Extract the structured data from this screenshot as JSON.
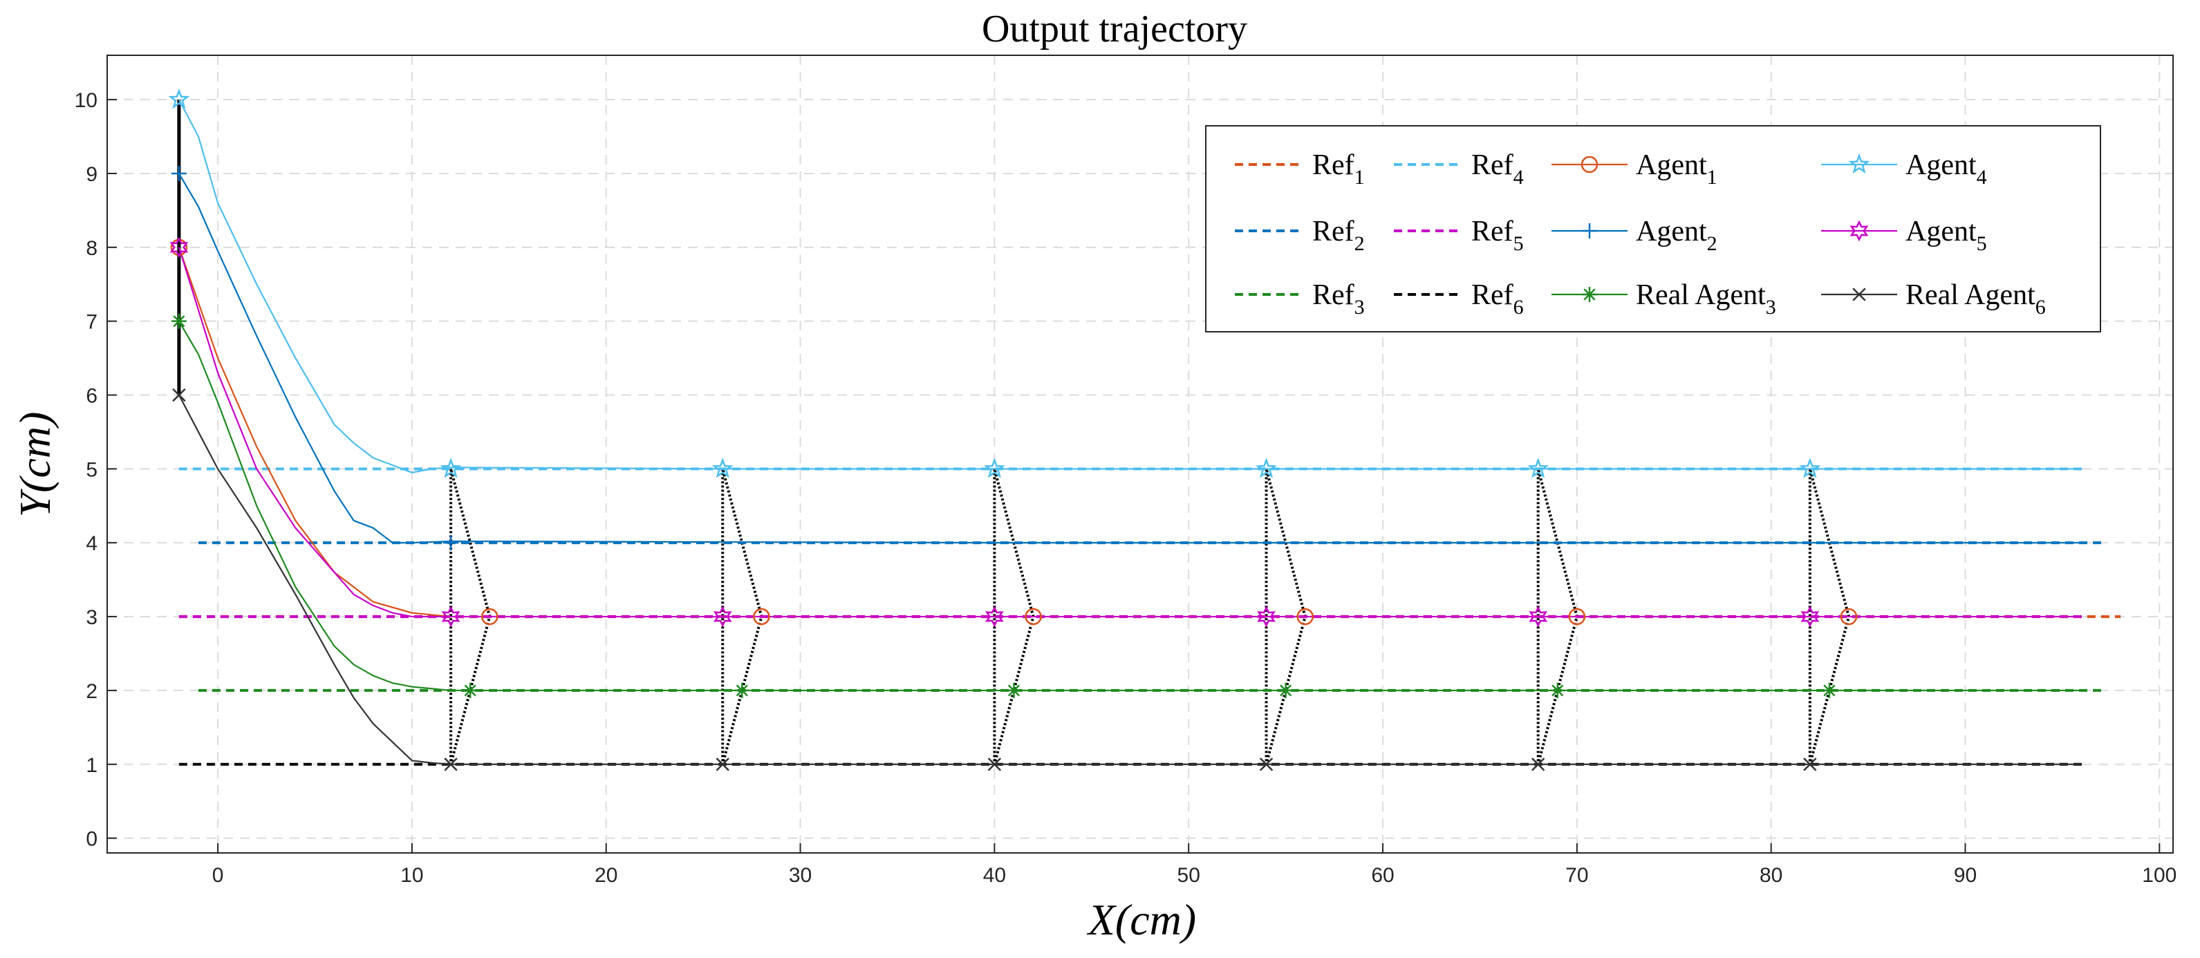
{
  "chart_data": {
    "type": "line",
    "title": "Output trajectory",
    "xlabel": "X(cm)",
    "ylabel": "Y(cm)",
    "xlim": [
      -5.7,
      100.7
    ],
    "ylim": [
      -0.2,
      10.6
    ],
    "xticks": [
      0,
      10,
      20,
      30,
      40,
      50,
      60,
      70,
      80,
      90,
      100
    ],
    "yticks": [
      0,
      1,
      2,
      3,
      4,
      5,
      6,
      7,
      8,
      9,
      10
    ],
    "grid": true,
    "legend_position": "top-right",
    "colors": {
      "ref1": "#D95319",
      "ref2": "#0072BD",
      "ref3": "#1F8A1F",
      "ref4": "#4DBEEE",
      "ref5": "#C800C8",
      "ref6": "#000000",
      "agent1": "#D95319",
      "agent2": "#0072BD",
      "agent3": "#1F8A1F",
      "agent4": "#4DBEEE",
      "agent5": "#C800C8",
      "agent6": "#333333",
      "formation": "#000000"
    },
    "series": [
      {
        "key": "ref1",
        "name": "Ref",
        "sub": "1",
        "style": "dashed",
        "x": [
          -2,
          98
        ],
        "y": [
          3,
          3
        ]
      },
      {
        "key": "ref2",
        "name": "Ref",
        "sub": "2",
        "style": "dashed",
        "x": [
          -1,
          97
        ],
        "y": [
          4,
          4
        ]
      },
      {
        "key": "ref3",
        "name": "Ref",
        "sub": "3",
        "style": "dashed",
        "x": [
          -1,
          97
        ],
        "y": [
          2,
          2
        ]
      },
      {
        "key": "ref4",
        "name": "Ref",
        "sub": "4",
        "style": "dashed",
        "x": [
          -2,
          96
        ],
        "y": [
          5,
          5
        ]
      },
      {
        "key": "ref5",
        "name": "Ref",
        "sub": "5",
        "style": "dashed",
        "x": [
          -2,
          96
        ],
        "y": [
          3,
          3
        ]
      },
      {
        "key": "ref6",
        "name": "Ref",
        "sub": "6",
        "style": "dashed",
        "x": [
          -2,
          96
        ],
        "y": [
          1,
          1
        ]
      },
      {
        "key": "agent1",
        "name": "Agent",
        "sub": "1",
        "style": "solid",
        "marker": "circle",
        "x": [
          -2,
          0,
          2,
          4,
          6,
          8,
          10,
          12,
          14,
          28,
          42,
          56,
          70,
          84,
          96
        ],
        "y": [
          8,
          6.5,
          5.3,
          4.3,
          3.6,
          3.2,
          3.05,
          3.0,
          3.0,
          3,
          3,
          3,
          3,
          3,
          3
        ],
        "marker_x": [
          -2,
          14,
          28,
          42,
          56,
          70,
          84
        ],
        "marker_y": [
          8,
          3,
          3,
          3,
          3,
          3,
          3
        ]
      },
      {
        "key": "agent2",
        "name": "Agent",
        "sub": "2",
        "style": "solid",
        "marker": "plus",
        "x": [
          -2,
          -1,
          0,
          2,
          4,
          5,
          6,
          7,
          8,
          9,
          10,
          12,
          40,
          96
        ],
        "y": [
          9,
          8.55,
          7.95,
          6.8,
          5.7,
          5.2,
          4.7,
          4.3,
          4.2,
          4.0,
          4.0,
          4.02,
          4.0,
          4.0
        ],
        "marker_x": [
          -2,
          12
        ],
        "marker_y": [
          9,
          4
        ]
      },
      {
        "key": "agent3",
        "name": "Real Agent",
        "sub": "3",
        "style": "solid",
        "marker": "asterisk",
        "x": [
          -2,
          -1,
          0,
          2,
          4,
          6,
          7,
          8,
          9,
          10,
          12,
          13,
          27,
          41,
          55,
          69,
          83,
          96
        ],
        "y": [
          7,
          6.55,
          5.9,
          4.5,
          3.4,
          2.6,
          2.35,
          2.2,
          2.1,
          2.05,
          2.0,
          2.0,
          2,
          2,
          2,
          2,
          2,
          2
        ],
        "marker_x": [
          -2,
          13,
          27,
          41,
          55,
          69,
          83
        ],
        "marker_y": [
          7,
          2,
          2,
          2,
          2,
          2,
          2
        ]
      },
      {
        "key": "agent4",
        "name": "Agent",
        "sub": "4",
        "style": "solid",
        "marker": "star",
        "x": [
          -2,
          -1,
          0,
          2,
          4,
          6,
          7,
          8,
          9,
          10,
          11,
          12,
          26,
          40,
          54,
          68,
          82,
          96
        ],
        "y": [
          10,
          9.5,
          8.6,
          7.5,
          6.5,
          5.6,
          5.35,
          5.15,
          5.05,
          4.95,
          5.0,
          5.02,
          5,
          5,
          5,
          5,
          5,
          5
        ],
        "marker_x": [
          -2,
          12,
          26,
          40,
          54,
          68,
          82
        ],
        "marker_y": [
          10,
          5,
          5,
          5,
          5,
          5,
          5
        ]
      },
      {
        "key": "agent5",
        "name": "Agent",
        "sub": "5",
        "style": "solid",
        "marker": "hexagram",
        "x": [
          -2,
          0,
          2,
          4,
          6,
          7,
          8,
          9,
          10,
          11,
          12,
          26,
          40,
          54,
          68,
          82,
          96
        ],
        "y": [
          8,
          6.3,
          5.0,
          4.2,
          3.6,
          3.3,
          3.15,
          3.05,
          3.0,
          3.0,
          3.0,
          3,
          3,
          3,
          3,
          3,
          3
        ],
        "marker_x": [
          -2,
          12,
          26,
          40,
          54,
          68,
          82
        ],
        "marker_y": [
          8,
          3,
          3,
          3,
          3,
          3,
          3
        ]
      },
      {
        "key": "agent6",
        "name": "Real Agent",
        "sub": "6",
        "style": "solid",
        "marker": "cross",
        "x": [
          -2,
          -1,
          0,
          2,
          4,
          6,
          7,
          8,
          9,
          10,
          11,
          12,
          26,
          40,
          54,
          68,
          82,
          96
        ],
        "y": [
          6,
          5.5,
          5.0,
          4.2,
          3.3,
          2.35,
          1.9,
          1.55,
          1.3,
          1.05,
          1.02,
          1.0,
          1,
          1,
          1,
          1,
          1,
          1
        ],
        "marker_x": [
          -2,
          12,
          26,
          40,
          54,
          68,
          82
        ],
        "marker_y": [
          6,
          1,
          1,
          1,
          1,
          1,
          1
        ]
      }
    ],
    "formation_x": [
      12,
      26,
      40,
      54,
      68,
      82
    ],
    "initial_bar": {
      "x": -2,
      "y": [
        6,
        10
      ]
    },
    "legend_rows": [
      [
        "ref1",
        "ref4",
        "agent1",
        "agent4"
      ],
      [
        "ref2",
        "ref5",
        "agent2",
        "agent5"
      ],
      [
        "ref3",
        "ref6",
        "agent3",
        "agent6"
      ]
    ]
  }
}
